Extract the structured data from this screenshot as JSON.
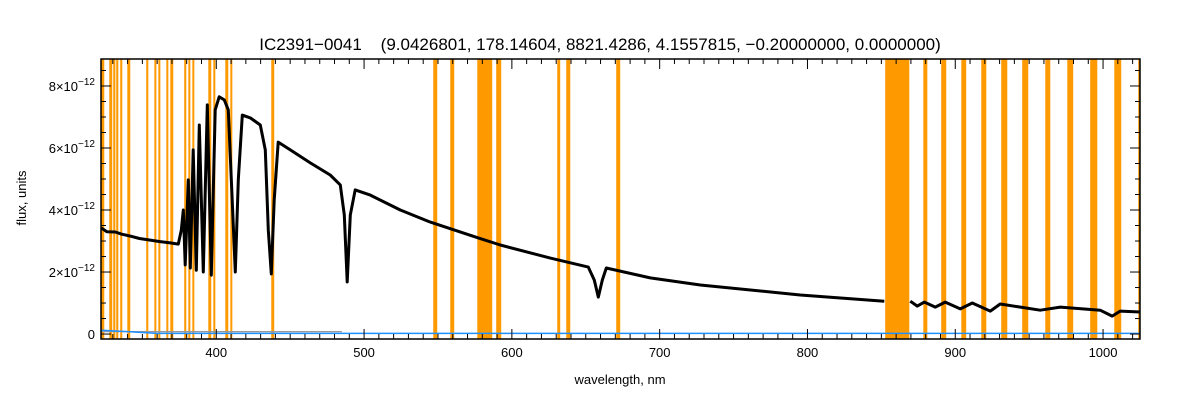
{
  "chart_data": {
    "type": "line",
    "title": "IC2391−0041    (9.0426801, 178.14604, 8821.4286, 4.1557815, −0.20000000, 0.0000000)",
    "xlabel": "wavelength, nm",
    "ylabel": "flux, units",
    "xlim": [
      322,
      1025
    ],
    "ylim": [
      -0.16,
      8.87
    ],
    "y_unit_exponent": -12,
    "x_ticks": [
      400,
      500,
      600,
      700,
      800,
      900,
      1000
    ],
    "x_tick_labels": [
      "400",
      "500",
      "600",
      "700",
      "800",
      "900",
      "1000"
    ],
    "y_ticks": [
      0,
      2,
      4,
      6,
      8
    ],
    "y_tick_labels": [
      {
        "mantissa": "0",
        "exp": ""
      },
      {
        "mantissa": "2×10",
        "exp": "−12"
      },
      {
        "mantissa": "4×10",
        "exp": "−12"
      },
      {
        "mantissa": "6×10",
        "exp": "−12"
      },
      {
        "mantissa": "8×10",
        "exp": "−12"
      }
    ],
    "colors": {
      "spectrum": "#000000",
      "error": "#1e90ff",
      "mask": "#ff9900",
      "model": "#999999"
    },
    "masked_regions_nm": [
      [
        322.2,
        324.2
      ],
      [
        327.6,
        329.6
      ],
      [
        330.3,
        331.7
      ],
      [
        332.3,
        333.7
      ],
      [
        335.0,
        336.4
      ],
      [
        339.8,
        341.8
      ],
      [
        352.6,
        354.0
      ],
      [
        358.1,
        359.4
      ],
      [
        360.8,
        362.1
      ],
      [
        366.2,
        367.5
      ],
      [
        368.9,
        370.9
      ],
      [
        378.3,
        379.7
      ],
      [
        381.1,
        382.4
      ],
      [
        383.8,
        385.1
      ],
      [
        394.6,
        396.6
      ],
      [
        398.0,
        399.3
      ],
      [
        406.1,
        408.1
      ],
      [
        409.5,
        410.8
      ],
      [
        437.2,
        439.2
      ],
      [
        546.8,
        549.5
      ],
      [
        558.3,
        561.0
      ],
      [
        576.6,
        586.7
      ],
      [
        589.4,
        592.8
      ],
      [
        630.7,
        632.7
      ],
      [
        636.8,
        639.5
      ],
      [
        670.6,
        673.3
      ],
      [
        852.6,
        868.9
      ],
      [
        878.4,
        881.1
      ],
      [
        890.5,
        893.9
      ],
      [
        904.1,
        907.4
      ],
      [
        917.6,
        921.0
      ],
      [
        931.1,
        935.2
      ],
      [
        945.3,
        949.4
      ],
      [
        960.9,
        964.3
      ],
      [
        975.8,
        979.8
      ],
      [
        991.3,
        996.1
      ],
      [
        1007.6,
        1012.3
      ],
      [
        1023.8,
        1025.0
      ]
    ],
    "series": [
      {
        "name": "flux",
        "segments": [
          [
            [
              322.2,
              3.42
            ],
            [
              326,
              3.3
            ],
            [
              331.7,
              3.29
            ],
            [
              336,
              3.22
            ],
            [
              341.8,
              3.16
            ],
            [
              348,
              3.08
            ],
            [
              355.3,
              3.03
            ],
            [
              362,
              2.98
            ],
            [
              368.9,
              2.94
            ],
            [
              374.3,
              2.9
            ],
            [
              376.3,
              3.35
            ],
            [
              377.7,
              4.0
            ],
            [
              379.0,
              2.23
            ],
            [
              381.1,
              4.97
            ],
            [
              382.4,
              2.13
            ],
            [
              384.4,
              5.94
            ],
            [
              386.5,
              2.06
            ],
            [
              388.5,
              6.74
            ],
            [
              391.2,
              2.0
            ],
            [
              393.9,
              7.39
            ],
            [
              396.6,
              1.9
            ],
            [
              399.3,
              7.23
            ],
            [
              402.0,
              7.65
            ],
            [
              405.4,
              7.55
            ],
            [
              408.1,
              7.23
            ],
            [
              410.8,
              4.32
            ],
            [
              412.9,
              2.0
            ],
            [
              414.9,
              4.97
            ],
            [
              417.6,
              7.06
            ],
            [
              423.0,
              6.97
            ],
            [
              429.8,
              6.74
            ],
            [
              433.2,
              5.94
            ],
            [
              435.2,
              3.35
            ],
            [
              437.2,
              1.94
            ],
            [
              439.2,
              4.32
            ],
            [
              441.9,
              6.19
            ],
            [
              450.1,
              5.94
            ],
            [
              463.6,
              5.52
            ],
            [
              477.1,
              5.13
            ],
            [
              483.9,
              4.81
            ],
            [
              486.6,
              3.84
            ],
            [
              488.6,
              1.68
            ],
            [
              490.7,
              3.84
            ],
            [
              494.0,
              4.65
            ],
            [
              504.2,
              4.48
            ],
            [
              524.5,
              4.0
            ],
            [
              544.8,
              3.61
            ],
            [
              577.3,
              3.1
            ],
            [
              592.2,
              2.87
            ],
            [
              626.0,
              2.45
            ],
            [
              651.7,
              2.16
            ],
            [
              655.8,
              1.74
            ],
            [
              658.5,
              1.19
            ],
            [
              661.2,
              1.74
            ],
            [
              663.9,
              2.13
            ],
            [
              693.6,
              1.81
            ],
            [
              727.5,
              1.58
            ],
            [
              795.1,
              1.26
            ],
            [
              852.0,
              1.06
            ]
          ],
          [
            [
              869.6,
              1.06
            ],
            [
              874.3,
              0.9
            ],
            [
              879.1,
              1.03
            ],
            [
              886.5,
              0.87
            ],
            [
              893.2,
              1.03
            ],
            [
              903.4,
              0.81
            ],
            [
              911.5,
              1.0
            ],
            [
              923.7,
              0.74
            ],
            [
              930.4,
              0.97
            ],
            [
              957.5,
              0.77
            ],
            [
              971.1,
              0.87
            ],
            [
              998.1,
              0.77
            ],
            [
              1006.2,
              0.58
            ],
            [
              1011.6,
              0.74
            ],
            [
              1025.2,
              0.71
            ]
          ]
        ]
      },
      {
        "name": "error",
        "points": [
          [
            322.2,
            0.12
          ],
          [
            340,
            0.08
          ],
          [
            360,
            0.02
          ],
          [
            1025,
            0.02
          ]
        ]
      },
      {
        "name": "model-box",
        "points": [
          [
            322.2,
            0.08
          ],
          [
            485,
            0.08
          ]
        ]
      }
    ]
  }
}
